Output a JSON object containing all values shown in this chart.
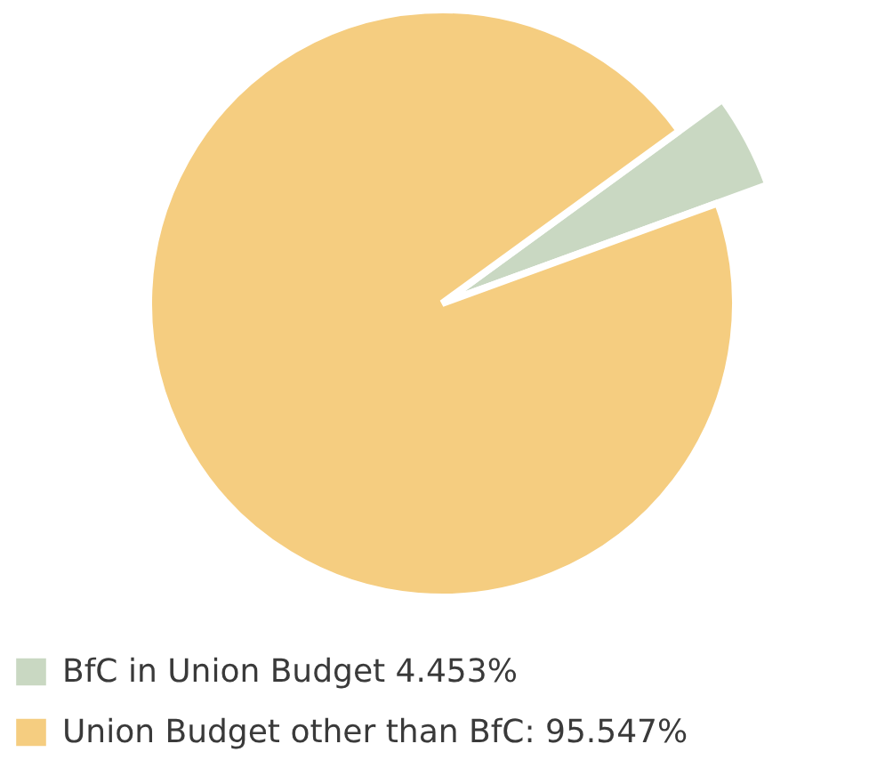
{
  "chart_data": {
    "type": "pie",
    "categories": [
      "BfC in Union Budget 4.453%",
      "Union Budget other than BfC: 95.547%"
    ],
    "values": [
      4.453,
      95.547
    ],
    "colors": [
      "#c9d8c2",
      "#f5cd80"
    ],
    "legend": "bottom"
  }
}
